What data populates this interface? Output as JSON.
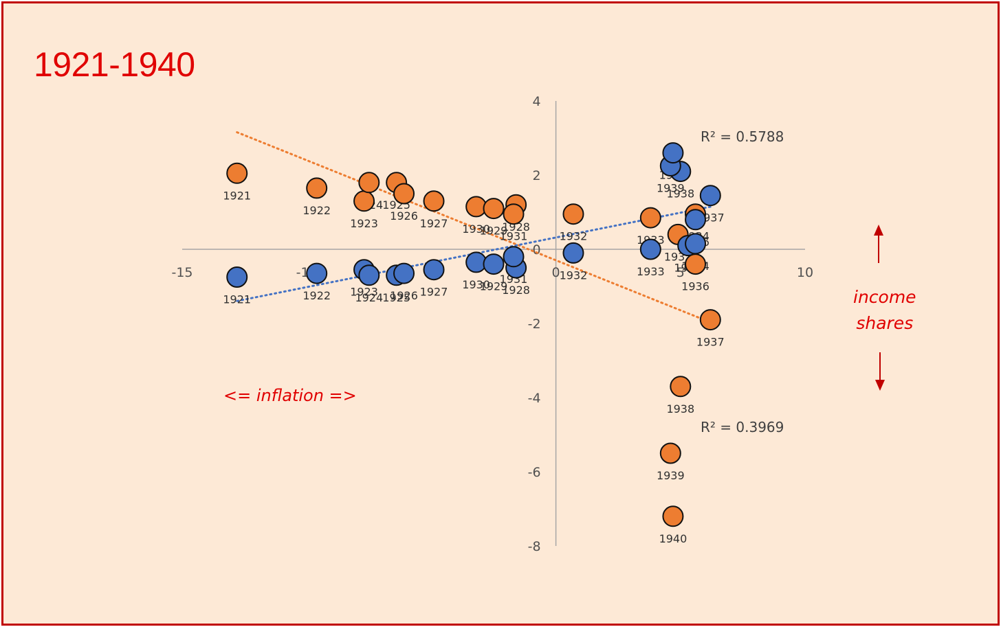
{
  "title": "1921-1940",
  "annotations": {
    "inflation": "<= inflation =>",
    "income_line1": "income",
    "income_line2": "shares",
    "r2_blue": "R² = 0.5788",
    "r2_orange": "R² = 0.3969"
  },
  "colors": {
    "frame": "#c00000",
    "background": "#fde9d6",
    "title": "#e00000",
    "blue_series": "#4472c4",
    "orange_series": "#ed7d31",
    "axis": "#a6a6a6",
    "arrow": "#c00000"
  },
  "chart_data": {
    "type": "scatter",
    "title": "1921-1940",
    "xlabel": "",
    "ylabel": "",
    "xlim": [
      -15,
      10
    ],
    "ylim": [
      -8,
      4
    ],
    "x_ticks": [
      -15,
      -10,
      -5,
      0,
      5,
      10
    ],
    "y_ticks": [
      4,
      2,
      0,
      -2,
      -4,
      -6,
      -8
    ],
    "grid": false,
    "series": [
      {
        "color": "#ed7d31",
        "trendline": "linear",
        "r_squared": "R² = 0.3969",
        "points": [
          {
            "label": "1921",
            "x": -12.8,
            "y": 2.05
          },
          {
            "label": "1922",
            "x": -9.6,
            "y": 1.65
          },
          {
            "label": "1923",
            "x": -7.7,
            "y": 1.3
          },
          {
            "label": "1924",
            "x": -7.5,
            "y": 1.8
          },
          {
            "label": "1925",
            "x": -6.4,
            "y": 1.8
          },
          {
            "label": "1926",
            "x": -6.1,
            "y": 1.5
          },
          {
            "label": "1927",
            "x": -4.9,
            "y": 1.3
          },
          {
            "label": "1930",
            "x": -3.2,
            "y": 1.15
          },
          {
            "label": "1929",
            "x": -2.5,
            "y": 1.1
          },
          {
            "label": "1928",
            "x": -1.6,
            "y": 1.2
          },
          {
            "label": "1931",
            "x": -1.7,
            "y": 0.95
          },
          {
            "label": "1932",
            "x": 0.7,
            "y": 0.95
          },
          {
            "label": "1933",
            "x": 3.8,
            "y": 0.85
          },
          {
            "label": "1935",
            "x": 4.9,
            "y": 0.4
          },
          {
            "label": "1934",
            "x": 5.6,
            "y": 0.95
          },
          {
            "label": "1936",
            "x": 5.6,
            "y": -0.4
          },
          {
            "label": "1937",
            "x": 6.2,
            "y": -1.9
          },
          {
            "label": "1938",
            "x": 5.0,
            "y": -3.7
          },
          {
            "label": "1939",
            "x": 4.6,
            "y": -5.5
          },
          {
            "label": "1940",
            "x": 4.7,
            "y": -7.2
          }
        ]
      },
      {
        "color": "#4472c4",
        "trendline": "linear",
        "r_squared": "R² = 0.5788",
        "points": [
          {
            "label": "1921",
            "x": -12.8,
            "y": -0.75
          },
          {
            "label": "1922",
            "x": -9.6,
            "y": -0.65
          },
          {
            "label": "1923",
            "x": -7.7,
            "y": -0.55
          },
          {
            "label": "1924",
            "x": -7.5,
            "y": -0.7
          },
          {
            "label": "1925",
            "x": -6.4,
            "y": -0.7
          },
          {
            "label": "1926",
            "x": -6.1,
            "y": -0.65
          },
          {
            "label": "1927",
            "x": -4.9,
            "y": -0.55
          },
          {
            "label": "1930",
            "x": -3.2,
            "y": -0.35
          },
          {
            "label": "1929",
            "x": -2.5,
            "y": -0.4
          },
          {
            "label": "1928",
            "x": -1.6,
            "y": -0.5
          },
          {
            "label": "1931",
            "x": -1.7,
            "y": -0.2
          },
          {
            "label": "1932",
            "x": 0.7,
            "y": -0.1
          },
          {
            "label": "1933",
            "x": 3.8,
            "y": 0.0
          },
          {
            "label": "1935",
            "x": 5.3,
            "y": 0.1
          },
          {
            "label": "1934",
            "x": 5.6,
            "y": 0.15
          },
          {
            "label": "1936",
            "x": 5.6,
            "y": 0.8
          },
          {
            "label": "1937",
            "x": 6.2,
            "y": 1.45
          },
          {
            "label": "1938",
            "x": 5.0,
            "y": 2.1
          },
          {
            "label": "1939",
            "x": 4.6,
            "y": 2.25
          },
          {
            "label": "1940",
            "x": 4.7,
            "y": 2.6
          }
        ]
      }
    ]
  }
}
